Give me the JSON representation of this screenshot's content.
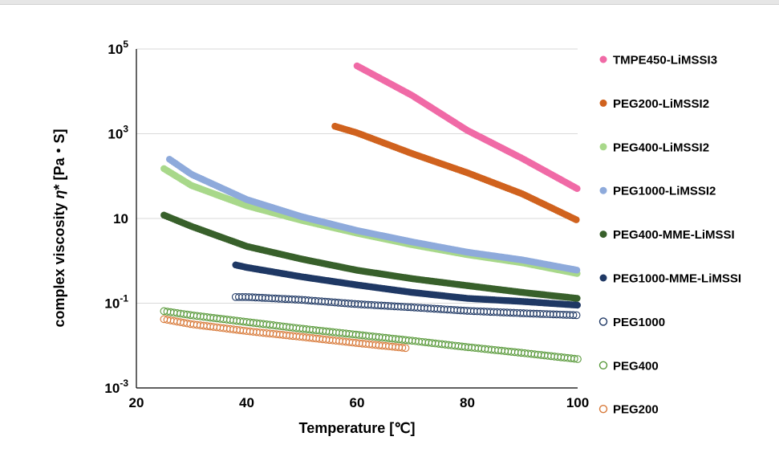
{
  "chart_data": {
    "type": "scatter",
    "xlabel": "Temperature [℃]",
    "ylabel_parts": [
      "complex viscosity ",
      "η",
      "* [Pa・S]"
    ],
    "xlim": [
      20,
      100
    ],
    "ylim_log10": [
      -3,
      5
    ],
    "y_scale": "log",
    "grid": "horizontal",
    "legend_position": "right",
    "x_ticks": [
      {
        "v": 20,
        "label": "20"
      },
      {
        "v": 40,
        "label": "40"
      },
      {
        "v": 60,
        "label": "60"
      },
      {
        "v": 80,
        "label": "80"
      },
      {
        "v": 100,
        "label": "100"
      }
    ],
    "y_ticks": [
      {
        "v": 5,
        "base": "10",
        "exp": "5"
      },
      {
        "v": 3,
        "base": "10",
        "exp": "3"
      },
      {
        "v": 1,
        "base": "10",
        "exp": ""
      },
      {
        "v": -1,
        "base": "10",
        "exp": "-1"
      },
      {
        "v": -3,
        "base": "10",
        "exp": "-3"
      }
    ],
    "series": [
      {
        "name": "TMPE450-LiMSSI3",
        "color": "#f06aa6",
        "filled": true,
        "x": [
          60,
          70,
          80,
          90,
          100
        ],
        "y": [
          40000,
          8000,
          1200,
          260,
          50
        ]
      },
      {
        "name": "PEG200-LiMSSI2",
        "color": "#d0621e",
        "filled": true,
        "x": [
          56,
          60,
          70,
          80,
          90,
          100
        ],
        "y": [
          1500,
          1050,
          340,
          120,
          38,
          9
        ]
      },
      {
        "name": "PEG400-LiMSSI2",
        "color": "#a8d88a",
        "filled": true,
        "x": [
          25,
          30,
          40,
          50,
          60,
          70,
          80,
          90,
          100
        ],
        "y": [
          150,
          60,
          20,
          9,
          4.5,
          2.4,
          1.4,
          0.9,
          0.5
        ]
      },
      {
        "name": "PEG1000-LiMSSI2",
        "color": "#8eaadb",
        "filled": true,
        "x": [
          26,
          30,
          40,
          50,
          60,
          70,
          80,
          90,
          100
        ],
        "y": [
          250,
          110,
          28,
          11,
          5.2,
          2.8,
          1.6,
          1.05,
          0.6
        ]
      },
      {
        "name": "PEG400-MME-LiMSSI",
        "color": "#38602b",
        "filled": true,
        "x": [
          25,
          30,
          40,
          50,
          60,
          70,
          80,
          90,
          100
        ],
        "y": [
          12,
          6.5,
          2.2,
          1.1,
          0.6,
          0.38,
          0.26,
          0.18,
          0.13
        ]
      },
      {
        "name": "PEG1000-MME-LiMSSI",
        "color": "#1f3864",
        "filled": true,
        "x": [
          38,
          40,
          50,
          60,
          70,
          80,
          90,
          100
        ],
        "y": [
          0.8,
          0.7,
          0.42,
          0.27,
          0.18,
          0.13,
          0.11,
          0.09
        ]
      },
      {
        "name": "PEG1000",
        "color": "#1f3864",
        "filled": false,
        "x": [
          38,
          40,
          50,
          60,
          70,
          80,
          90,
          100
        ],
        "y": [
          0.14,
          0.14,
          0.12,
          0.095,
          0.08,
          0.066,
          0.058,
          0.052
        ]
      },
      {
        "name": "PEG400",
        "color": "#5a9a3c",
        "filled": false,
        "x": [
          25,
          30,
          40,
          50,
          60,
          70,
          80,
          90,
          100
        ],
        "y": [
          0.065,
          0.052,
          0.036,
          0.025,
          0.018,
          0.013,
          0.0092,
          0.0067,
          0.0048
        ]
      },
      {
        "name": "PEG200",
        "color": "#d87a3a",
        "filled": false,
        "x": [
          25,
          30,
          40,
          50,
          60,
          69
        ],
        "y": [
          0.042,
          0.032,
          0.022,
          0.016,
          0.0115,
          0.0087
        ]
      }
    ]
  }
}
